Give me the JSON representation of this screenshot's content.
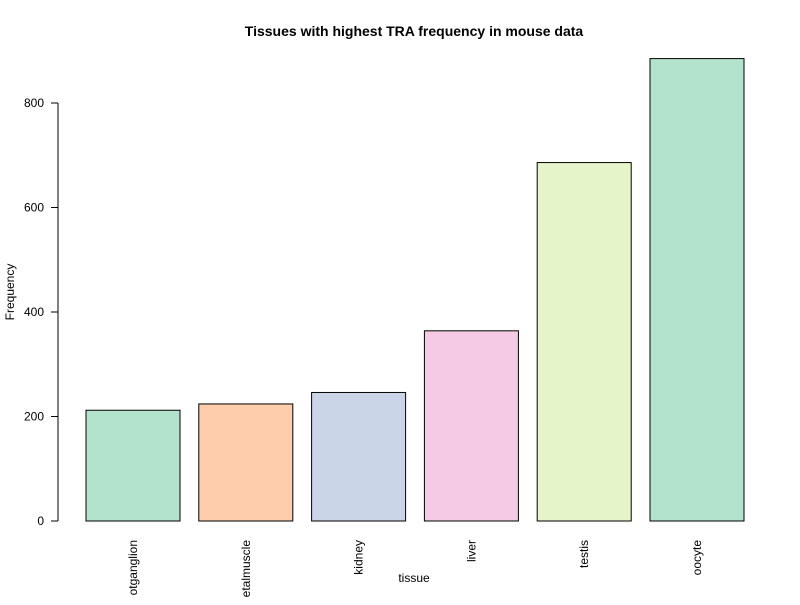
{
  "chart_data": {
    "type": "bar",
    "title": "Tissues with highest TRA frequency in mouse data",
    "xlabel": "tissue",
    "ylabel": "Frequency",
    "categories": [
      "rootganglion",
      "skeletalmuscle",
      "kidney",
      "liver",
      "testis",
      "oocyte"
    ],
    "category_labels_visible": [
      "otganglion",
      "etalmuscle",
      "kidney",
      "liver",
      "testis",
      "oocyte"
    ],
    "values": [
      212,
      224,
      246,
      364,
      686,
      885
    ],
    "ylim": [
      0,
      885
    ],
    "yticks": [
      0,
      200,
      400,
      600,
      800
    ],
    "colors": [
      "#b3e2cd",
      "#fdcdac",
      "#cbd5e8",
      "#f4cae4",
      "#e6f5c9",
      "#b3e2cd"
    ],
    "grid": false,
    "legend": "none"
  }
}
